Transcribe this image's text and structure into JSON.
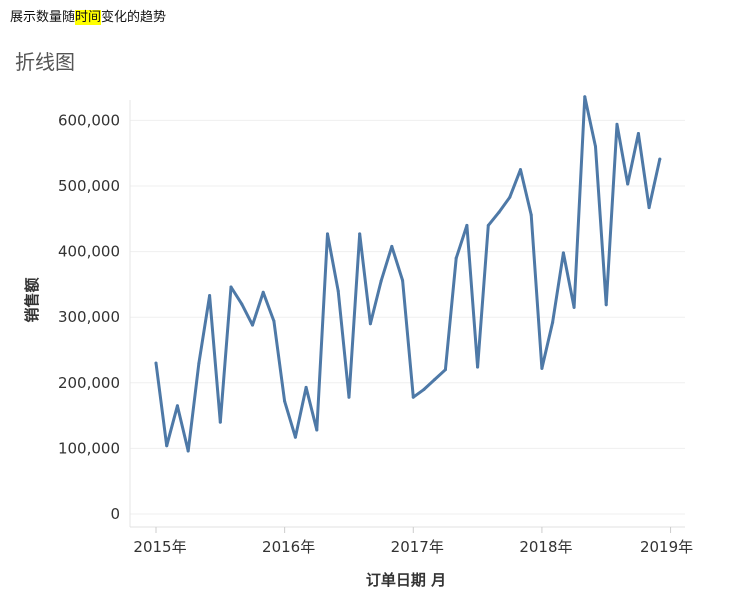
{
  "caption": {
    "prefix": "展示数量随",
    "highlight": "时间",
    "suffix": "变化的趋势"
  },
  "chart_data": {
    "type": "line",
    "title": "折线图",
    "xlabel": "订单日期 月",
    "ylabel": "销售额",
    "ylim": [
      0,
      650000
    ],
    "y_ticks": [
      0,
      100000,
      200000,
      300000,
      400000,
      500000,
      600000
    ],
    "y_tick_labels": [
      "0",
      "100,000",
      "200,000",
      "300,000",
      "400,000",
      "500,000",
      "600,000"
    ],
    "x_tick_labels": [
      "2015年",
      "2016年",
      "2017年",
      "2018年",
      "2019年"
    ],
    "x_ticks": [
      "2015-01",
      "2016-01",
      "2017-01",
      "2018-01",
      "2019-01"
    ],
    "grid": true,
    "color": "#4e79a7",
    "series": [
      {
        "x": [
          "2015-01",
          "2015-02",
          "2015-03",
          "2015-04",
          "2015-05",
          "2015-06",
          "2015-07",
          "2015-08",
          "2015-09",
          "2015-10",
          "2015-11",
          "2015-12",
          "2016-01",
          "2016-02",
          "2016-03",
          "2016-04",
          "2016-05",
          "2016-06",
          "2016-07",
          "2016-08",
          "2016-09",
          "2016-10",
          "2016-11",
          "2016-12",
          "2017-01",
          "2017-02",
          "2017-03",
          "2017-04",
          "2017-05",
          "2017-06",
          "2017-07",
          "2017-08",
          "2017-09",
          "2017-10",
          "2017-11",
          "2017-12",
          "2018-01",
          "2018-02",
          "2018-03",
          "2018-04",
          "2018-05",
          "2018-06",
          "2018-07",
          "2018-08",
          "2018-09",
          "2018-10",
          "2018-11",
          "2018-12"
        ],
        "values": [
          230000,
          104000,
          165000,
          96000,
          230000,
          333000,
          140000,
          346000,
          320000,
          288000,
          338000,
          294000,
          172000,
          117000,
          193000,
          128000,
          427000,
          340000,
          178000,
          427000,
          290000,
          355000,
          408000,
          356000,
          178000,
          190000,
          205000,
          220000,
          390000,
          440000,
          224000,
          440000,
          460000,
          483000,
          525000,
          456000,
          222000,
          292000,
          398000,
          315000,
          636000,
          560000,
          319000,
          594000,
          503000,
          580000,
          467000,
          541000
        ]
      }
    ]
  }
}
